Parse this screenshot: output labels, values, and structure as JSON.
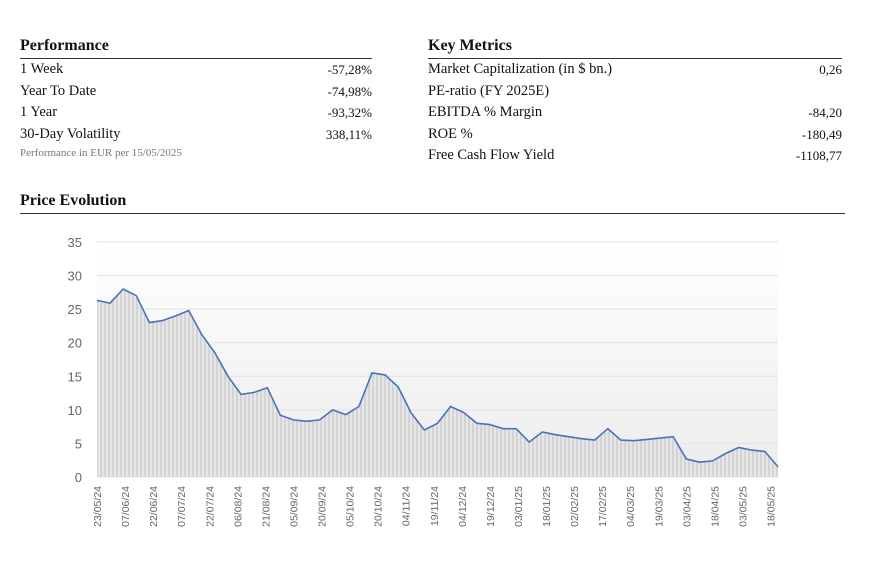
{
  "performance": {
    "title": "Performance",
    "rows": [
      [
        "1 Week",
        "-57,28%"
      ],
      [
        "Year To Date",
        "-74,98%"
      ],
      [
        "1 Year",
        "-93,32%"
      ],
      [
        "30-Day Volatility",
        "338,11%"
      ]
    ],
    "note": "Performance in EUR per 15/05/2025"
  },
  "key_metrics": {
    "title": "Key Metrics",
    "rows": [
      [
        "Market Capitalization (in $ bn.)",
        "0,26"
      ],
      [
        "PE-ratio (FY 2025E)",
        ""
      ],
      [
        "EBITDA % Margin",
        "-84,20"
      ],
      [
        "ROE %",
        "-180,49"
      ],
      [
        "Free Cash Flow Yield",
        "-1108,77"
      ]
    ]
  },
  "chart_data": {
    "type": "line",
    "title": "Price Evolution",
    "color": "#4a72b8",
    "grid": true,
    "x": [
      "23/05/24",
      "30/05/24",
      "06/06/24",
      "13/06/24",
      "20/06/24",
      "27/06/24",
      "04/07/24",
      "11/07/24",
      "18/07/24",
      "25/07/24",
      "01/08/24",
      "08/08/24",
      "15/08/24",
      "22/08/24",
      "29/08/24",
      "05/09/24",
      "12/09/24",
      "19/09/24",
      "26/09/24",
      "03/10/24",
      "10/10/24",
      "17/10/24",
      "24/10/24",
      "31/10/24",
      "07/11/24",
      "14/11/24",
      "21/11/24",
      "28/11/24",
      "05/12/24",
      "12/12/24",
      "19/12/24",
      "26/12/24",
      "02/01/25",
      "09/01/25",
      "16/01/25",
      "23/01/25",
      "30/01/25",
      "06/02/25",
      "13/02/25",
      "20/02/25",
      "27/02/25",
      "06/03/25",
      "13/03/25",
      "20/03/25",
      "27/03/25",
      "03/04/25",
      "10/04/25",
      "17/04/25",
      "24/04/25",
      "01/05/25",
      "08/05/25",
      "15/05/25",
      "22/05/25"
    ],
    "values": [
      26.3,
      25.9,
      28,
      27,
      23,
      23.3,
      24,
      24.8,
      21.2,
      18.5,
      15,
      12.3,
      12.6,
      13.3,
      9.2,
      8.5,
      8.3,
      8.5,
      10,
      9.3,
      10.5,
      15.5,
      15.2,
      13.4,
      9.5,
      7,
      8,
      10.5,
      9.6,
      8,
      7.8,
      7.2,
      7.2,
      5.2,
      6.7,
      6.3,
      6,
      5.7,
      5.5,
      7.2,
      5.5,
      5.4,
      5.6,
      5.8,
      6,
      2.7,
      2.2,
      2.4,
      3.5,
      4.4,
      4,
      3.8,
      1.5
    ],
    "xlim": [
      "23/05/24",
      "22/05/25"
    ],
    "xticks": [
      "23/05/24",
      "07/06/24",
      "22/06/24",
      "07/07/24",
      "22/07/24",
      "06/08/24",
      "21/08/24",
      "05/09/24",
      "20/09/24",
      "05/10/24",
      "20/10/24",
      "04/11/24",
      "19/11/24",
      "04/12/24",
      "19/12/24",
      "03/01/25",
      "18/01/25",
      "02/02/25",
      "17/02/25",
      "04/03/25",
      "19/03/25",
      "03/04/25",
      "18/04/25",
      "03/05/25",
      "18/05/25"
    ],
    "ylim": [
      0,
      35
    ],
    "yticks": [
      0,
      5,
      10,
      15,
      20,
      25,
      30,
      35
    ]
  }
}
